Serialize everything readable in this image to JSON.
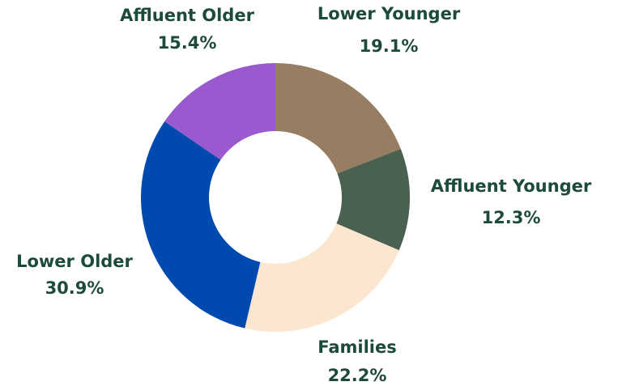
{
  "chart_data": {
    "type": "donut",
    "categories": [
      "Lower Younger",
      "Affluent Younger",
      "Families",
      "Lower Older",
      "Affluent Older"
    ],
    "values": [
      19.1,
      12.3,
      22.2,
      30.9,
      15.4
    ],
    "value_labels": [
      "19.1%",
      "12.3%",
      "22.2%",
      "30.9%",
      "15.4%"
    ],
    "colors": [
      "#977d62",
      "#4a6150",
      "#fde6cf",
      "#0049af",
      "#9b59cf"
    ]
  }
}
